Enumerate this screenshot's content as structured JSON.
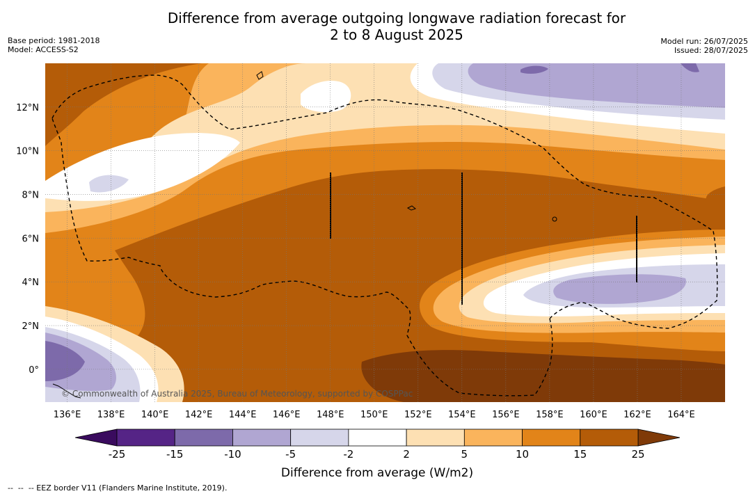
{
  "header": {
    "title_line1": "Difference from average outgoing longwave radiation forecast for",
    "title_line2": "2 to 8 August 2025",
    "base_period": "Base period: 1981-2018",
    "model": "Model: ACCESS-S2",
    "model_run": "Model run: 26/07/2025",
    "issued": "Issued: 28/07/2025"
  },
  "map": {
    "lon_range": [
      135,
      166
    ],
    "lat_range": [
      -1.5,
      14
    ],
    "lon_ticks": [
      "136°E",
      "138°E",
      "140°E",
      "142°E",
      "144°E",
      "146°E",
      "148°E",
      "150°E",
      "152°E",
      "154°E",
      "156°E",
      "158°E",
      "160°E",
      "162°E",
      "164°E"
    ],
    "lat_ticks": [
      "0°",
      "2°N",
      "4°N",
      "6°N",
      "8°N",
      "10°N",
      "12°N"
    ],
    "copyright": "© Commonwealth of Australia 2025, Bureau of Meteorology, supported by COSPPac",
    "colors": {
      "m25": "#3a0b5e",
      "m15": "#552486",
      "m10": "#7d6aaa",
      "m5": "#b0a6d2",
      "m2": "#d6d6ea",
      "p0": "#ffffff",
      "p2": "#fde0b3",
      "p5": "#fab45c",
      "p10": "#e28419",
      "p15": "#b45c08",
      "p25": "#7f3a08"
    }
  },
  "colorbar": {
    "title": "Difference from average (W/m2)",
    "ticks": [
      "-25",
      "-15",
      "-10",
      "-5",
      "-2",
      "2",
      "5",
      "10",
      "15",
      "25"
    ],
    "colors": [
      "#552486",
      "#7d6aaa",
      "#b0a6d2",
      "#d6d6ea",
      "#ffffff",
      "#fde0b3",
      "#fab45c",
      "#e28419",
      "#b45c08"
    ],
    "low_extend_color": "#3a0b5e",
    "high_extend_color": "#7f3a08"
  },
  "footnote": "--  --  -- EEZ border V11 (Flanders Marine Institute, 2019)."
}
